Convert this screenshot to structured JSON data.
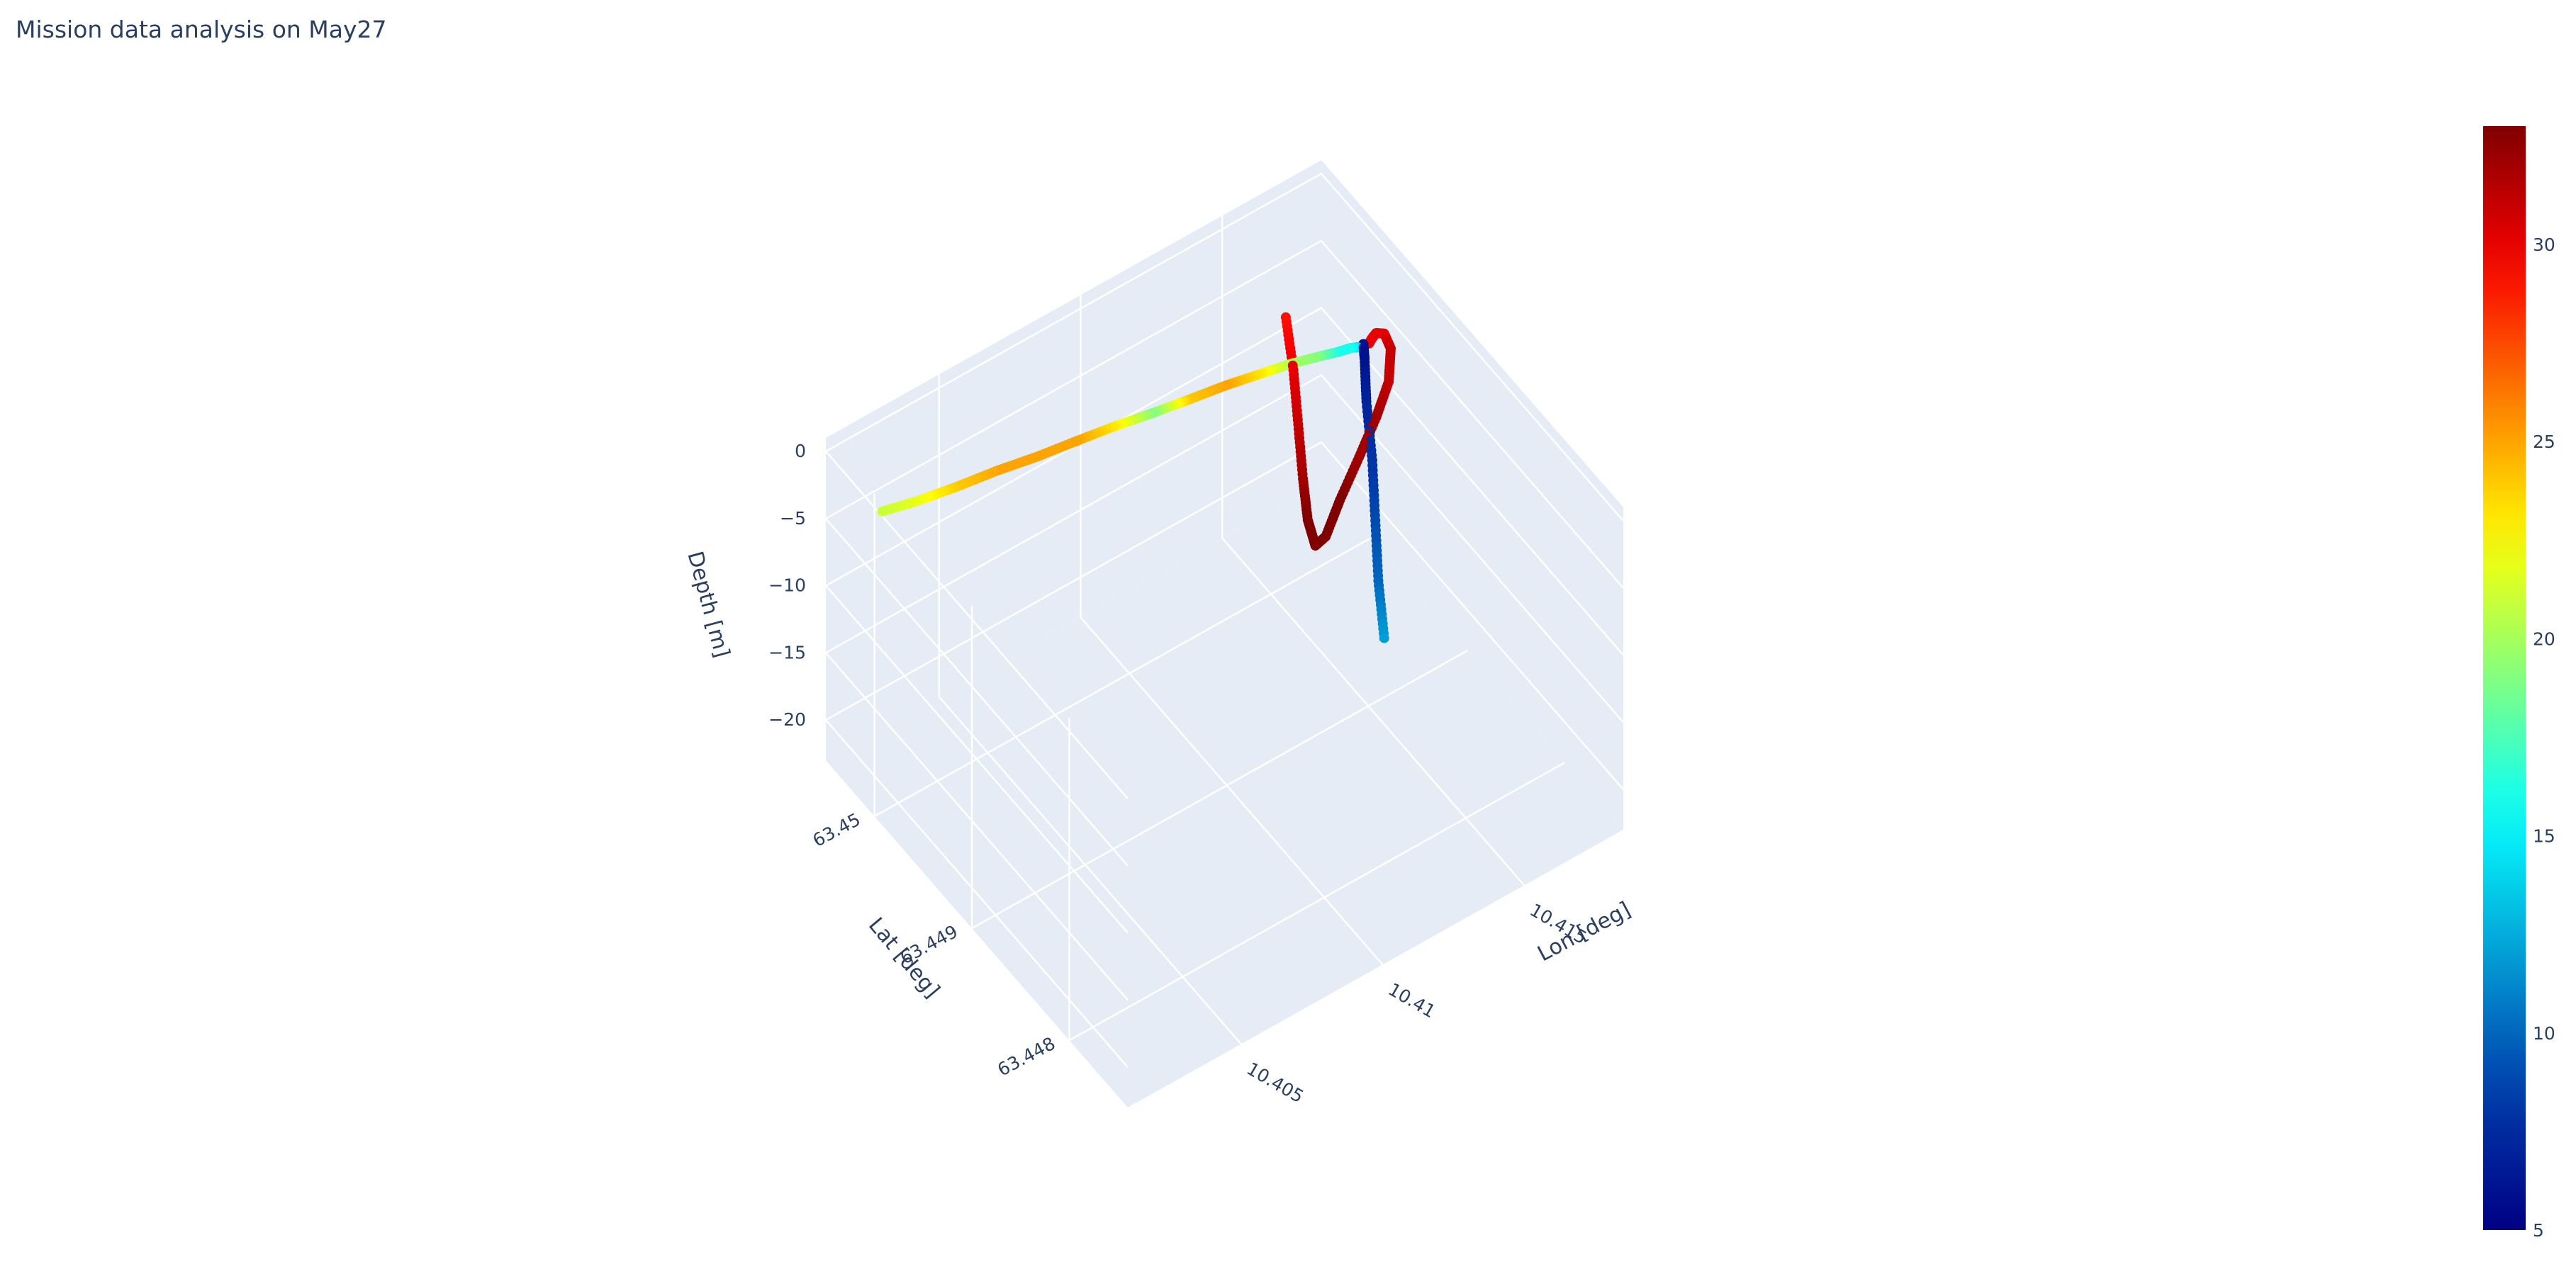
{
  "title": "Mission data analysis on May27",
  "chart_data": {
    "type": "scatter3d",
    "title": "Mission data analysis on May27",
    "x_axis": {
      "title": "Lon [deg]",
      "ticks": [
        10.405,
        10.41,
        10.415
      ],
      "tick_labels": [
        "10.405",
        "10.41",
        "10.415"
      ],
      "range": [
        10.401,
        10.4185
      ]
    },
    "y_axis": {
      "title": "Lat [deg]",
      "ticks": [
        63.448,
        63.449,
        63.45
      ],
      "tick_labels": [
        "63.448",
        "63.449",
        "63.45"
      ],
      "range": [
        63.4474,
        63.4505
      ]
    },
    "z_axis": {
      "title": "Depth [m]",
      "ticks": [
        0,
        -5,
        -10,
        -15,
        -20
      ],
      "tick_labels": [
        "0",
        "−5",
        "−10",
        "−15",
        "−20"
      ],
      "range": [
        -23,
        1
      ]
    },
    "colorbar": {
      "colorscale": "Jet",
      "range": [
        5,
        33
      ],
      "ticks": [
        5,
        10,
        15,
        20,
        25,
        30
      ],
      "tick_labels": [
        "5",
        "10",
        "15",
        "20",
        "25",
        "30"
      ]
    },
    "grid": true,
    "series": [
      {
        "x": [
          10.4011,
          10.4022,
          10.4035,
          10.4048,
          10.406,
          10.4073,
          10.4085,
          10.4097,
          10.4108,
          10.412,
          10.4131,
          10.414,
          10.4148,
          10.4154,
          10.4158,
          10.416
        ],
        "y": [
          63.44995,
          63.44991,
          63.44987,
          63.44983,
          63.44979,
          63.44975,
          63.44971,
          63.44967,
          63.44963,
          63.44959,
          63.44955,
          63.44951,
          63.44947,
          63.44944,
          63.44942,
          63.4494
        ],
        "z": [
          0,
          -0.2,
          -0.3,
          -0.3,
          -0.4,
          -0.4,
          -0.4,
          -0.5,
          -0.5,
          -0.5,
          -0.6,
          -0.6,
          -0.7,
          -0.8,
          -0.8,
          -0.8
        ],
        "color": [
          21,
          22,
          24,
          25,
          25,
          25,
          23,
          19,
          24,
          25,
          23,
          20,
          19,
          16,
          16,
          14
        ]
      },
      {
        "x": [
          10.4104,
          10.4115,
          10.4127,
          10.4139,
          10.415,
          10.4159,
          10.4162
        ],
        "y": [
          63.4475,
          63.44788,
          63.44826,
          63.44864,
          63.44902,
          63.4493,
          63.4494
        ],
        "z": [
          0,
          -0.2,
          -0.3,
          -0.4,
          -0.5,
          -0.7,
          -0.8
        ],
        "color": [
          12,
          10,
          9,
          8,
          7,
          6,
          6
        ]
      },
      {
        "x": [
          10.4164,
          10.4167,
          10.4172,
          10.4178,
          10.4182,
          10.4183,
          10.4181,
          10.4177,
          10.4172,
          10.4168,
          10.4165,
          10.4163,
          10.4162,
          10.4161,
          10.416,
          10.4158
        ],
        "y": [
          63.4494,
          63.44946,
          63.44956,
          63.44965,
          63.4497,
          63.44975,
          63.44982,
          63.44988,
          63.44993,
          63.44996,
          63.44998,
          63.45,
          63.45002,
          63.45004,
          63.45006,
          63.45008
        ],
        "z": [
          -1.0,
          -1.5,
          -2.5,
          -4.0,
          -6.0,
          -9.0,
          -12.0,
          -15.0,
          -18.0,
          -20.5,
          -21.0,
          -19.0,
          -16.0,
          -12.0,
          -8.0,
          -4.0
        ],
        "color": [
          30,
          30,
          30,
          30,
          31,
          31,
          32,
          32,
          33,
          33,
          33,
          33,
          32,
          31,
          30,
          29
        ]
      }
    ]
  }
}
